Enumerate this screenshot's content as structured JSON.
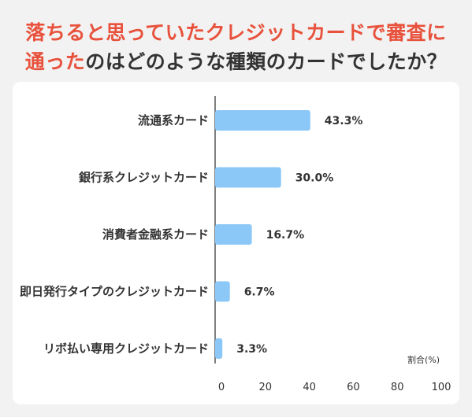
{
  "header": {
    "line1_red": "落ちると思っていたクレジットカードで審査に",
    "line2_red": "通った",
    "line2_dark": "のはどのような種類のカードでしたか？"
  },
  "colors": {
    "accent_red": "#e8523c",
    "bar": "#8cc8f7",
    "text": "#333333"
  },
  "chart_data": {
    "type": "bar",
    "orientation": "horizontal",
    "categories": [
      "流通系カード",
      "銀行系クレジットカード",
      "消費者金融系カード",
      "即日発行タイプのクレジットカード",
      "リボ払い専用クレジットカード"
    ],
    "values": [
      43.3,
      30.0,
      16.7,
      6.7,
      3.3
    ],
    "value_labels": [
      "43.3%",
      "30.0%",
      "16.7%",
      "6.7%",
      "3.3%"
    ],
    "title": "",
    "xlabel": "割合(%)",
    "ylabel": "",
    "xlim": [
      0,
      100
    ],
    "xticks": [
      "0",
      "20",
      "40",
      "60",
      "80",
      "100"
    ],
    "grid": false
  }
}
